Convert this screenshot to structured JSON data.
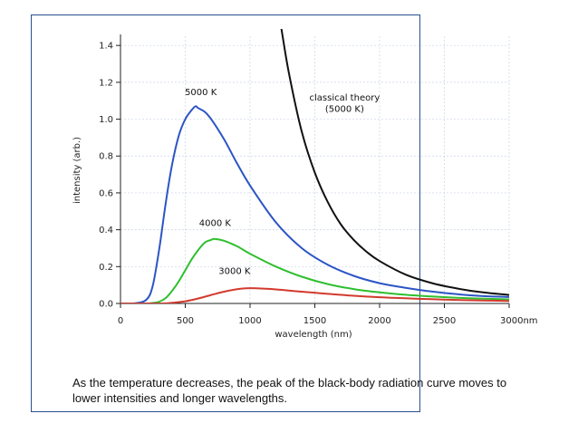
{
  "caption": "As the temperature decreases, the peak of the black-body radiation curve moves to lower intensities and longer wavelengths.",
  "chart_data": {
    "type": "line",
    "xlabel": "wavelength (nm)",
    "ylabel": "intensity (arb.)",
    "xlim": [
      0,
      3000
    ],
    "ylim": [
      0,
      1.45
    ],
    "grid": true,
    "x_ticks": [
      0,
      500,
      1000,
      1500,
      2000,
      2500,
      3000
    ],
    "x_tick_labels": [
      "0",
      "500",
      "1000",
      "1500",
      "2000",
      "2500",
      "3000nm"
    ],
    "y_ticks": [
      0.0,
      0.2,
      0.4,
      0.6,
      0.8,
      1.0,
      1.2,
      1.4
    ],
    "y_tick_labels": [
      "0.0",
      "0.2",
      "0.4",
      "0.6",
      "0.8",
      "1.0",
      "1.2",
      "1.4"
    ],
    "series": [
      {
        "name": "5000 K",
        "color": "#2b55c4",
        "x": [
          0,
          100,
          200,
          250,
          300,
          350,
          400,
          450,
          500,
          550,
          580,
          600,
          650,
          700,
          800,
          900,
          1000,
          1200,
          1400,
          1600,
          1800,
          2000,
          2200,
          2400,
          2600,
          2800,
          3000
        ],
        "y": [
          0,
          0,
          0.02,
          0.1,
          0.3,
          0.55,
          0.76,
          0.91,
          1.0,
          1.05,
          1.07,
          1.06,
          1.04,
          1.0,
          0.89,
          0.76,
          0.64,
          0.44,
          0.3,
          0.21,
          0.15,
          0.11,
          0.085,
          0.065,
          0.05,
          0.04,
          0.035
        ]
      },
      {
        "name": "4000 K",
        "color": "#2fbf2f",
        "x": [
          0,
          200,
          250,
          300,
          350,
          400,
          450,
          500,
          550,
          600,
          650,
          700,
          725,
          800,
          900,
          1000,
          1200,
          1400,
          1600,
          1800,
          2000,
          2200,
          2400,
          2600,
          2800,
          3000
        ],
        "y": [
          0,
          0,
          0.003,
          0.01,
          0.03,
          0.07,
          0.12,
          0.18,
          0.24,
          0.29,
          0.33,
          0.345,
          0.35,
          0.34,
          0.31,
          0.27,
          0.2,
          0.145,
          0.105,
          0.078,
          0.06,
          0.047,
          0.038,
          0.031,
          0.026,
          0.022
        ]
      },
      {
        "name": "3000 K",
        "color": "#d23a2e",
        "x": [
          0,
          300,
          400,
          500,
          600,
          700,
          800,
          900,
          970,
          1050,
          1200,
          1400,
          1600,
          1800,
          2000,
          2200,
          2400,
          2600,
          2800,
          3000
        ],
        "y": [
          0,
          0,
          0.004,
          0.012,
          0.027,
          0.046,
          0.064,
          0.077,
          0.082,
          0.082,
          0.076,
          0.064,
          0.052,
          0.042,
          0.034,
          0.028,
          0.023,
          0.019,
          0.016,
          0.014
        ]
      },
      {
        "name": "classical theory\n(5000 K)",
        "color": "#111111",
        "x": [
          1240,
          1300,
          1400,
          1500,
          1600,
          1700,
          1800,
          1900,
          2000,
          2200,
          2400,
          2600,
          2800,
          3000
        ],
        "y": [
          1.5,
          1.25,
          0.93,
          0.71,
          0.55,
          0.43,
          0.345,
          0.28,
          0.23,
          0.157,
          0.111,
          0.081,
          0.06,
          0.046
        ]
      }
    ],
    "annotations": [
      {
        "text": "5000 K",
        "x": 620,
        "y": 1.13
      },
      {
        "text": "4000 K",
        "x": 730,
        "y": 0.42
      },
      {
        "text": "3000 K",
        "x": 880,
        "y": 0.16
      },
      {
        "text": "classical theory",
        "x": 1730,
        "y": 1.1
      },
      {
        "text": "(5000 K)",
        "x": 1730,
        "y": 1.04
      }
    ]
  }
}
